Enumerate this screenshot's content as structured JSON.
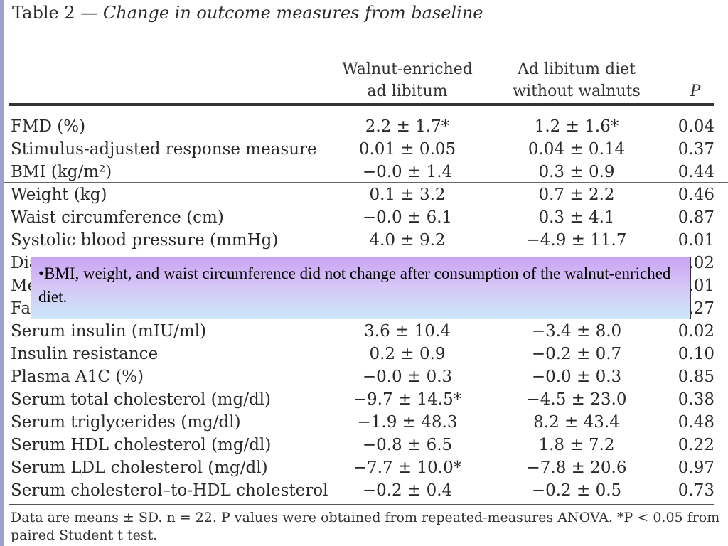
{
  "table": {
    "title_label": "Table 2 —",
    "title_text": "Change in outcome measures from baseline",
    "headers": {
      "walnut_line1": "Walnut-enriched",
      "walnut_line2": "ad libitum",
      "adlib_line1": "Ad libitum diet",
      "adlib_line2": "without walnuts",
      "p": "P"
    },
    "rows": [
      {
        "measure": "FMD (%)",
        "walnut": "2.2 ± 1.7*",
        "adlib": "1.2 ± 1.6*",
        "p": "0.04"
      },
      {
        "measure": "Stimulus-adjusted response measure",
        "walnut": "0.01 ± 0.05",
        "adlib": "0.04 ± 0.14",
        "p": "0.37"
      },
      {
        "measure": "BMI (kg/m²)",
        "walnut": "−0.0 ± 1.4",
        "adlib": "0.3 ± 0.9",
        "p": "0.44"
      },
      {
        "measure": "Weight (kg)",
        "walnut": "0.1 ± 3.2",
        "adlib": "0.7 ± 2.2",
        "p": "0.46"
      },
      {
        "measure": "Waist circumference (cm)",
        "walnut": "−0.0 ± 6.1",
        "adlib": "0.3 ± 4.1",
        "p": "0.87"
      },
      {
        "measure": "Systolic blood pressure (mmHg)",
        "walnut": "4.0 ± 9.2",
        "adlib": "−4.9 ± 11.7",
        "p": "0.01"
      },
      {
        "measure": "Dia",
        "walnut": "",
        "adlib": "",
        "p": ".02"
      },
      {
        "measure": "Me",
        "walnut": "",
        "adlib": "",
        "p": ".01"
      },
      {
        "measure": "Fas",
        "walnut": "",
        "adlib": "",
        "p": ".27"
      },
      {
        "measure": "Serum insulin (mIU/ml)",
        "walnut": "3.6 ± 10.4",
        "adlib": "−3.4 ± 8.0",
        "p": "0.02"
      },
      {
        "measure": "Insulin resistance",
        "walnut": "0.2 ± 0.9",
        "adlib": "−0.2 ± 0.7",
        "p": "0.10"
      },
      {
        "measure": "Plasma A1C (%)",
        "walnut": "−0.0 ± 0.3",
        "adlib": "−0.0 ± 0.3",
        "p": "0.85"
      },
      {
        "measure": "Serum total cholesterol (mg/dl)",
        "walnut": "−9.7 ± 14.5*",
        "adlib": "−4.5 ± 23.0",
        "p": "0.38"
      },
      {
        "measure": "Serum triglycerides (mg/dl)",
        "walnut": "−1.9 ± 48.3",
        "adlib": "8.2 ± 43.4",
        "p": "0.48"
      },
      {
        "measure": "Serum HDL cholesterol (mg/dl)",
        "walnut": "−0.8 ± 6.5",
        "adlib": "1.8 ± 7.2",
        "p": "0.22"
      },
      {
        "measure": "Serum LDL cholesterol (mg/dl)",
        "walnut": "−7.7 ± 10.0*",
        "adlib": "−7.8 ± 20.6",
        "p": "0.97"
      },
      {
        "measure": "Serum cholesterol–to-HDL cholesterol",
        "walnut": "−0.2 ± 0.4",
        "adlib": "−0.2 ± 0.5",
        "p": "0.73"
      }
    ],
    "footnote": "Data are means ± SD. n = 22. P values were obtained from repeated-measures ANOVA. *P < 0.05 from paired Student t test."
  },
  "callout": {
    "text": "•BMI, weight, and waist circumference did not change after consumption of the walnut-enriched diet."
  },
  "colors": {
    "callout_gradient_top": "#c9a4f4",
    "callout_gradient_bottom": "#cbe7fa",
    "left_bar": "#9aa3c8"
  }
}
